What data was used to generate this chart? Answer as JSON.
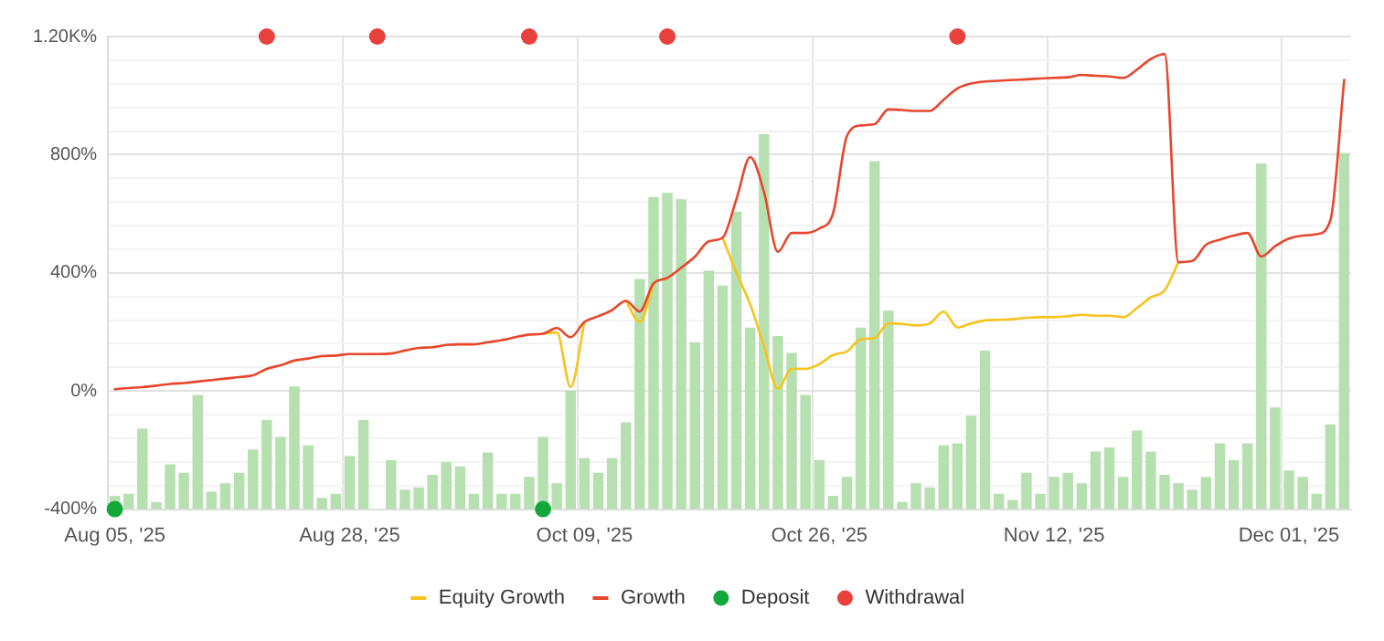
{
  "chart_data": {
    "type": "bar",
    "categories": [
      "Aug 05, '25",
      null,
      null,
      null,
      null,
      null,
      null,
      null,
      null,
      null,
      null,
      null,
      null,
      null,
      null,
      null,
      null,
      "Aug 28, '25",
      null,
      null,
      null,
      null,
      null,
      null,
      null,
      null,
      null,
      null,
      null,
      null,
      null,
      null,
      null,
      null,
      "Oct 09, '25",
      null,
      null,
      null,
      null,
      null,
      null,
      null,
      null,
      null,
      null,
      null,
      null,
      null,
      null,
      null,
      null,
      "Oct 26, '25",
      null,
      null,
      null,
      null,
      null,
      null,
      null,
      null,
      null,
      null,
      null,
      null,
      null,
      null,
      null,
      null,
      "Nov 12, '25",
      null,
      null,
      null,
      null,
      null,
      null,
      null,
      null,
      null,
      null,
      null,
      null,
      null,
      null,
      null,
      null,
      "Dec 01, '25",
      null,
      null,
      null,
      null
    ],
    "series": [
      {
        "color": "#b7e0b0",
        "base": [
          -400,
          -400,
          -400,
          -400,
          -400,
          -400,
          -400,
          -400,
          -400,
          -400,
          -400,
          -400,
          -400,
          -400,
          -400,
          -400,
          -400,
          -400,
          -400,
          null,
          -400,
          -400,
          -400,
          -400,
          -400,
          -400,
          -400,
          -400,
          -400,
          -400,
          -400,
          -400,
          -400,
          -400,
          -400,
          -400,
          -400,
          -400,
          -400,
          -400,
          -400,
          -400,
          -400,
          -400,
          -400,
          -400,
          -400,
          -400,
          -400,
          -400,
          -400,
          -400,
          -400,
          -400,
          -400,
          -400,
          -400,
          -400,
          -400,
          -400,
          -400,
          -400,
          -400,
          -400,
          -400,
          -400,
          -400,
          -400,
          -400,
          -400,
          -400,
          -400,
          -400,
          -400,
          -400,
          -400,
          -400,
          -400,
          -400,
          -400,
          -400,
          -400,
          -400,
          -400,
          -400,
          -400,
          -400,
          -400,
          -400,
          -400
        ],
        "values": [
          45,
          52,
          273,
          24,
          152,
          123,
          387,
          59,
          88,
          123,
          202,
          302,
          245,
          415,
          216,
          38,
          52,
          180,
          302,
          null,
          166,
          66,
          74,
          116,
          159,
          145,
          52,
          192,
          52,
          52,
          109,
          245,
          88,
          401,
          173,
          123,
          173,
          294,
          779,
          1057,
          1071,
          1049,
          565,
          807,
          757,
          1007,
          615,
          1270,
          586,
          529,
          387,
          166,
          45,
          109,
          615,
          1178,
          672,
          24,
          88,
          74,
          216,
          223,
          316,
          537,
          52,
          31,
          123,
          52,
          109,
          123,
          88,
          195,
          209,
          109,
          266,
          195,
          116,
          88,
          66,
          109,
          223,
          166,
          223,
          1170,
          344,
          131,
          109,
          52,
          287,
          1206
        ]
      },
      {
        "type": "line",
        "name": "Equity Growth",
        "color": "#f7c31c",
        "values": [
          null,
          null,
          null,
          null,
          null,
          null,
          null,
          null,
          null,
          null,
          null,
          null,
          null,
          null,
          null,
          null,
          null,
          null,
          null,
          null,
          null,
          null,
          null,
          null,
          null,
          null,
          null,
          null,
          null,
          null,
          null,
          194,
          198,
          13,
          234,
          null,
          null,
          305,
          234,
          364,
          null,
          null,
          null,
          null,
          519,
          400,
          293,
          151,
          8,
          75,
          75,
          91,
          122,
          134,
          175,
          179,
          229,
          227,
          222,
          229,
          269,
          215,
          229,
          239,
          241,
          243,
          248,
          250,
          250,
          253,
          258,
          255,
          255,
          250,
          281,
          317,
          341,
          436,
          null,
          null,
          null,
          null,
          null,
          null,
          null,
          null,
          null,
          null,
          null,
          null
        ]
      },
      {
        "type": "line",
        "name": "Growth",
        "color": "#e8462c",
        "values": [
          6,
          10,
          13,
          18,
          24,
          27,
          32,
          37,
          42,
          47,
          53,
          75,
          87,
          103,
          110,
          118,
          120,
          125,
          125,
          125,
          127,
          137,
          146,
          148,
          156,
          158,
          158,
          165,
          172,
          182,
          191,
          194,
          213,
          182,
          234,
          253,
          274,
          305,
          269,
          364,
          383,
          417,
          455,
          507,
          519,
          649,
          792,
          673,
          471,
          535,
          535,
          550,
          602,
          863,
          899,
          903,
          953,
          951,
          948,
          948,
          986,
          1024,
          1041,
          1048,
          1050,
          1053,
          1055,
          1058,
          1060,
          1062,
          1070,
          1067,
          1065,
          1060,
          1088,
          1124,
          1141,
          436,
          440,
          495,
          512,
          526,
          535,
          455,
          490,
          516,
          526,
          531,
          578,
          1053
        ]
      },
      {
        "type": "scatter",
        "name": "Deposit",
        "color": "#14a83b",
        "values": [
          -400,
          null,
          null,
          null,
          null,
          null,
          null,
          null,
          null,
          null,
          null,
          null,
          null,
          null,
          null,
          null,
          null,
          null,
          null,
          null,
          null,
          null,
          null,
          null,
          null,
          null,
          null,
          null,
          null,
          null,
          null,
          -400,
          null,
          null,
          null,
          null,
          null,
          null,
          null,
          null,
          null,
          null,
          null,
          null,
          null,
          null,
          null,
          null,
          null,
          null,
          null,
          null,
          null,
          null,
          null,
          null,
          null,
          null,
          null,
          null,
          null,
          null,
          null,
          null,
          null,
          null,
          null,
          null,
          null,
          null,
          null,
          null,
          null,
          null,
          null,
          null,
          null,
          null,
          null,
          null,
          null,
          null,
          null,
          null,
          null,
          null,
          null,
          null,
          null,
          null
        ]
      },
      {
        "type": "scatter",
        "name": "Withdrawal",
        "color": "#e8403a",
        "values": [
          null,
          null,
          null,
          null,
          null,
          null,
          null,
          null,
          null,
          null,
          null,
          1200,
          null,
          null,
          null,
          null,
          null,
          null,
          null,
          1200,
          null,
          null,
          null,
          null,
          null,
          null,
          null,
          null,
          null,
          null,
          1200,
          null,
          null,
          null,
          null,
          null,
          null,
          null,
          null,
          null,
          1200,
          null,
          null,
          null,
          null,
          null,
          null,
          null,
          null,
          null,
          null,
          null,
          null,
          null,
          null,
          null,
          null,
          null,
          null,
          null,
          null,
          1200,
          null,
          null,
          null,
          null,
          null,
          null,
          null,
          null,
          null,
          null,
          null,
          null,
          null,
          null,
          null,
          null,
          null,
          null,
          null,
          null,
          null,
          null,
          null,
          null,
          null,
          null,
          null,
          null
        ]
      }
    ],
    "ylim": [
      -400,
      1200
    ],
    "yticks": [
      {
        "value": -400,
        "label": "-400%"
      },
      {
        "value": -320,
        "label": null
      },
      {
        "value": -240,
        "label": null
      },
      {
        "value": -160,
        "label": null
      },
      {
        "value": -80,
        "label": null
      },
      {
        "value": 0,
        "label": "0%"
      },
      {
        "value": 80,
        "label": null
      },
      {
        "value": 160,
        "label": null
      },
      {
        "value": 240,
        "label": null
      },
      {
        "value": 320,
        "label": null
      },
      {
        "value": 400,
        "label": "400%"
      },
      {
        "value": 480,
        "label": null
      },
      {
        "value": 560,
        "label": null
      },
      {
        "value": 640,
        "label": null
      },
      {
        "value": 720,
        "label": null
      },
      {
        "value": 800,
        "label": "800%"
      },
      {
        "value": 880,
        "label": null
      },
      {
        "value": 960,
        "label": null
      },
      {
        "value": 1040,
        "label": null
      },
      {
        "value": 1120,
        "label": null
      },
      {
        "value": 1200,
        "label": "1.20K%"
      }
    ],
    "grid": true,
    "legend": "bottom"
  }
}
